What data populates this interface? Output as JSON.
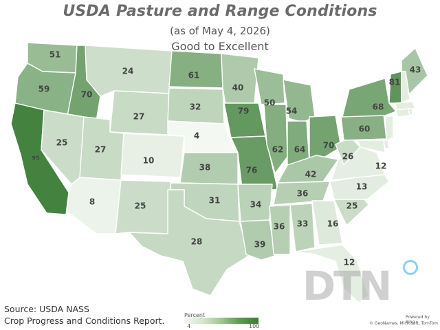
{
  "title": "USDA Pasture and Range Conditions",
  "subtitle": "(as of May 4, 2026)",
  "subtitle2": "Good to Excellent",
  "source_line1": "Source:  USDA NASS",
  "source_line2": "Crop Progress and Conditions Report.",
  "legend": {
    "title": "Percent",
    "min": "4",
    "max": "100",
    "min_value": 4,
    "max_value": 100,
    "color_low": "#f4f8f2",
    "color_high": "#3a7d35"
  },
  "logo": "DTN",
  "credit_1": "Powered by Bing",
  "credit_2": "© GeoNames, Microsoft, TomTom",
  "states": [
    {
      "id": "WA",
      "value": 51
    },
    {
      "id": "OR",
      "value": 59
    },
    {
      "id": "CA",
      "value": 95
    },
    {
      "id": "ID",
      "value": 70
    },
    {
      "id": "NV",
      "value": 25
    },
    {
      "id": "MT",
      "value": 24
    },
    {
      "id": "WY",
      "value": 27
    },
    {
      "id": "UT",
      "value": 27
    },
    {
      "id": "CO",
      "value": 10
    },
    {
      "id": "AZ",
      "value": 8
    },
    {
      "id": "NM",
      "value": 25
    },
    {
      "id": "ND",
      "value": 61
    },
    {
      "id": "SD",
      "value": 32
    },
    {
      "id": "NE",
      "value": 4
    },
    {
      "id": "KS",
      "value": 38
    },
    {
      "id": "OK",
      "value": 31
    },
    {
      "id": "TX",
      "value": 28
    },
    {
      "id": "MN",
      "value": 40
    },
    {
      "id": "IA",
      "value": 79
    },
    {
      "id": "MO",
      "value": 76
    },
    {
      "id": "AR",
      "value": 34
    },
    {
      "id": "LA",
      "value": 39
    },
    {
      "id": "WI",
      "value": 50
    },
    {
      "id": "IL",
      "value": 62
    },
    {
      "id": "MI",
      "value": 54
    },
    {
      "id": "IN",
      "value": 64
    },
    {
      "id": "OH",
      "value": 70
    },
    {
      "id": "KY",
      "value": 42
    },
    {
      "id": "TN",
      "value": 36
    },
    {
      "id": "MS",
      "value": 36
    },
    {
      "id": "AL",
      "value": 33
    },
    {
      "id": "GA",
      "value": 16
    },
    {
      "id": "FL",
      "value": 12
    },
    {
      "id": "SC",
      "value": 25
    },
    {
      "id": "NC",
      "value": 13
    },
    {
      "id": "VA",
      "value": 12
    },
    {
      "id": "WV",
      "value": 26
    },
    {
      "id": "PA",
      "value": 60
    },
    {
      "id": "NY",
      "value": 68
    },
    {
      "id": "VT",
      "value": 81
    },
    {
      "id": "ME",
      "value": 43
    },
    {
      "id": "MD",
      "value": null
    },
    {
      "id": "NJ",
      "value": null
    },
    {
      "id": "NH",
      "value": null
    },
    {
      "id": "MA",
      "value": null
    },
    {
      "id": "CT",
      "value": null
    },
    {
      "id": "DE",
      "value": null
    },
    {
      "id": "RI",
      "value": null
    }
  ]
}
